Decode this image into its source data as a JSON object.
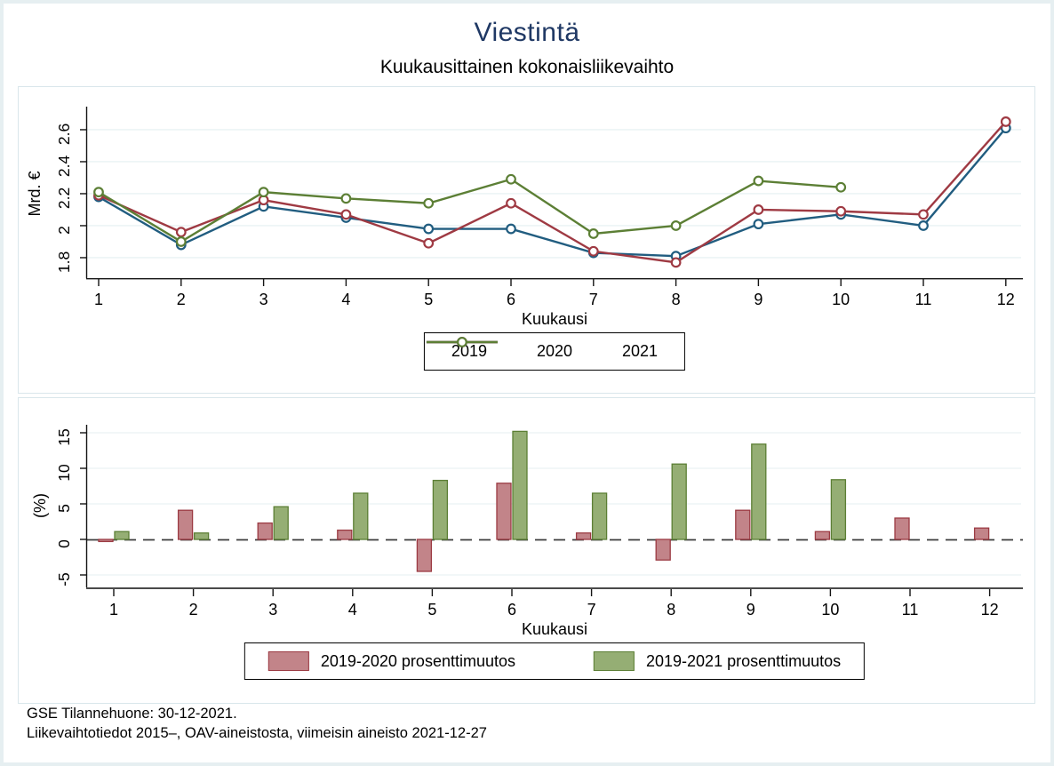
{
  "title": "Viestintä",
  "subtitle": "Kuukausittainen kokonaisliikevaihto",
  "footer": {
    "line1": "GSE Tilannehuone: 30-12-2021.",
    "line2": "Liikevaihtotiedot 2015–, OAV-aineistosta, viimeisin aineisto 2021-12-27"
  },
  "colors": {
    "title_navy": "#1f3864",
    "line_2019": "#215d80",
    "line_2020": "#9f3a43",
    "line_2021": "#5c7f35",
    "bar_2020_fill": "#c28489",
    "bar_2020_stroke": "#9c3b43",
    "bar_2021_fill": "#95ae74",
    "bar_2021_stroke": "#5c7f35",
    "gridline": "#e9f2f4",
    "panel_border": "#d9e6eb",
    "outer_border": "#e6eff1"
  },
  "chart_data": [
    {
      "type": "line",
      "panel": "top",
      "title": "Viestintä",
      "subtitle": "Kuukausittainen kokonaisliikevaihto",
      "xlabel": "Kuukausi",
      "ylabel": "Mrd. €",
      "x": [
        "1",
        "2",
        "3",
        "4",
        "5",
        "6",
        "7",
        "8",
        "9",
        "10",
        "11",
        "12"
      ],
      "yticks": [
        "1.8",
        "2",
        "2.2",
        "2.4",
        "2.6"
      ],
      "ylim": [
        1.67,
        2.78
      ],
      "grid": true,
      "legend_position": "bottom-center",
      "marker": "hollow-circle",
      "series": [
        {
          "name": "2019",
          "color": "#215d80",
          "values": [
            2.18,
            1.88,
            2.12,
            2.05,
            1.98,
            1.98,
            1.83,
            1.81,
            2.01,
            2.07,
            2.0,
            2.61
          ]
        },
        {
          "name": "2020",
          "color": "#9f3a43",
          "values": [
            2.19,
            1.96,
            2.16,
            2.07,
            1.89,
            2.14,
            1.84,
            1.77,
            2.1,
            2.09,
            2.07,
            2.65
          ]
        },
        {
          "name": "2021",
          "color": "#5c7f35",
          "values": [
            2.21,
            1.9,
            2.21,
            2.17,
            2.14,
            2.29,
            1.95,
            2.0,
            2.28,
            2.24,
            null,
            null
          ]
        }
      ]
    },
    {
      "type": "bar",
      "panel": "bottom",
      "xlabel": "Kuukausi",
      "ylabel": "(%)",
      "categories": [
        "1",
        "2",
        "3",
        "4",
        "5",
        "6",
        "7",
        "8",
        "9",
        "10",
        "11",
        "12"
      ],
      "yticks": [
        "-5",
        "0",
        "5",
        "10",
        "15"
      ],
      "ylim": [
        -6.8,
        17.2
      ],
      "grid": true,
      "zero_line": "dashed",
      "legend_position": "bottom-center",
      "series": [
        {
          "name": "2019-2020 prosenttimuutos",
          "fill": "#c28489",
          "stroke": "#9c3b43",
          "values": [
            -0.3,
            4.1,
            2.3,
            1.3,
            -4.5,
            7.9,
            0.9,
            -2.9,
            4.1,
            1.1,
            3.0,
            1.6
          ]
        },
        {
          "name": "2019-2021 prosenttimuutos",
          "fill": "#95ae74",
          "stroke": "#5c7f35",
          "values": [
            1.1,
            0.9,
            4.6,
            6.5,
            8.3,
            15.2,
            6.5,
            10.6,
            13.4,
            8.4,
            null,
            null
          ]
        }
      ]
    }
  ]
}
